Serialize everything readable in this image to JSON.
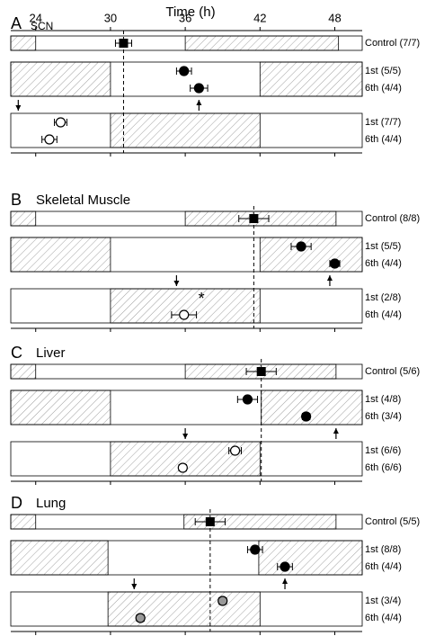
{
  "chart_data": [
    {
      "type": "scatter",
      "xlabel": "Time (h)",
      "panel": "A",
      "title": "SCN",
      "xlim": [
        22,
        50.2
      ],
      "xticks": [
        24,
        30,
        36,
        42,
        48
      ],
      "arrows": [
        {
          "x": 37.1,
          "dir": "up"
        },
        {
          "x": 22.6,
          "dir": "down"
        }
      ],
      "rows": [
        {
          "shaded": [
            [
              22,
              24
            ],
            [
              36,
              48.3
            ]
          ],
          "points": [
            {
              "label": "Control (7/7)",
              "x": 31.05,
              "err": 0.65,
              "marker": "square"
            }
          ]
        },
        {
          "shaded": [
            [
              22,
              30
            ],
            [
              42,
              50.2
            ]
          ],
          "points": [
            {
              "label": "1st (5/5)",
              "x": 35.9,
              "err": 0.6,
              "marker": "filled"
            },
            {
              "label": "6th (4/4)",
              "x": 37.1,
              "err": 0.7,
              "marker": "filled"
            }
          ]
        },
        {
          "shaded": [
            [
              30,
              42
            ]
          ],
          "points": [
            {
              "label": "1st (7/7)",
              "x": 26.0,
              "err": 0.5,
              "marker": "open"
            },
            {
              "label": "6th (4/4)",
              "x": 25.1,
              "err": 0.6,
              "marker": "open"
            }
          ]
        }
      ]
    },
    {
      "type": "scatter",
      "panel": "B",
      "title": "Skeletal Muscle",
      "xlim": [
        22,
        50.2
      ],
      "xticks": [
        24,
        30,
        36,
        42,
        48
      ],
      "arrows": [
        {
          "x": 47.6,
          "dir": "up"
        },
        {
          "x": 35.3,
          "dir": "down"
        }
      ],
      "rows": [
        {
          "shaded": [
            [
              22,
              24
            ],
            [
              36,
              48.1
            ]
          ],
          "points": [
            {
              "label": "Control (8/8)",
              "x": 41.5,
              "err": 1.2,
              "marker": "square"
            }
          ]
        },
        {
          "shaded": [
            [
              22,
              30
            ],
            [
              42,
              50.2
            ]
          ],
          "points": [
            {
              "label": "1st (5/5)",
              "x": 45.3,
              "err": 0.8,
              "marker": "filled"
            },
            {
              "label": "6th (4/4)",
              "x": 48.0,
              "err": 0.4,
              "marker": "filled"
            }
          ]
        },
        {
          "shaded": [
            [
              30,
              42
            ]
          ],
          "annotations": [
            {
              "text": "*",
              "x": 37.3
            }
          ],
          "points": [
            {
              "label": "1st (2/8)",
              "x": null,
              "err": null,
              "marker": "open"
            },
            {
              "label": "6th (4/4)",
              "x": 35.9,
              "err": 1.0,
              "marker": "open"
            }
          ]
        }
      ]
    },
    {
      "type": "scatter",
      "panel": "C",
      "title": "Liver",
      "xlim": [
        22,
        50.2
      ],
      "xticks": [
        24,
        30,
        36,
        42,
        48
      ],
      "arrows": [
        {
          "x": 48.1,
          "dir": "up"
        },
        {
          "x": 36.0,
          "dir": "down"
        }
      ],
      "rows": [
        {
          "shaded": [
            [
              22,
              24
            ],
            [
              36,
              48.1
            ]
          ],
          "points": [
            {
              "label": "Control (5/6)",
              "x": 42.1,
              "err": 1.2,
              "marker": "square"
            }
          ]
        },
        {
          "shaded": [
            [
              22,
              30
            ],
            [
              42.1,
              50.2
            ]
          ],
          "points": [
            {
              "label": "1st (4/8)",
              "x": 41.0,
              "err": 0.8,
              "marker": "filled"
            },
            {
              "label": "6th (3/4)",
              "x": 45.7,
              "err": 0.3,
              "marker": "filled"
            }
          ]
        },
        {
          "shaded": [
            [
              30,
              42
            ]
          ],
          "points": [
            {
              "label": "1st (6/6)",
              "x": 40.0,
              "err": 0.5,
              "marker": "open"
            },
            {
              "label": "6th (6/6)",
              "x": 35.8,
              "err": 0.3,
              "marker": "open"
            }
          ]
        }
      ]
    },
    {
      "type": "scatter",
      "panel": "D",
      "title": "Lung",
      "xlim": [
        22,
        50.2
      ],
      "xticks": [
        24,
        30,
        36,
        42,
        48
      ],
      "arrows": [
        {
          "x": 44.0,
          "dir": "up"
        },
        {
          "x": 31.9,
          "dir": "down"
        }
      ],
      "rows": [
        {
          "shaded": [
            [
              22,
              24
            ],
            [
              35.9,
              48.1
            ]
          ],
          "points": [
            {
              "label": "Control (5/5)",
              "x": 38.0,
              "err": 1.2,
              "marker": "square"
            }
          ]
        },
        {
          "shaded": [
            [
              22,
              29.8
            ],
            [
              41.9,
              50.2
            ]
          ],
          "points": [
            {
              "label": "1st (8/8)",
              "x": 41.6,
              "err": 0.6,
              "marker": "filled"
            },
            {
              "label": "6th (4/4)",
              "x": 44.0,
              "err": 0.6,
              "marker": "filled"
            }
          ]
        },
        {
          "shaded": [
            [
              29.8,
              42
            ]
          ],
          "points": [
            {
              "label": "1st (3/4)",
              "x": 39.0,
              "err": 0.3,
              "marker": "gray"
            },
            {
              "label": "6th (4/4)",
              "x": 32.4,
              "err": 0.3,
              "marker": "gray"
            }
          ]
        }
      ]
    }
  ]
}
